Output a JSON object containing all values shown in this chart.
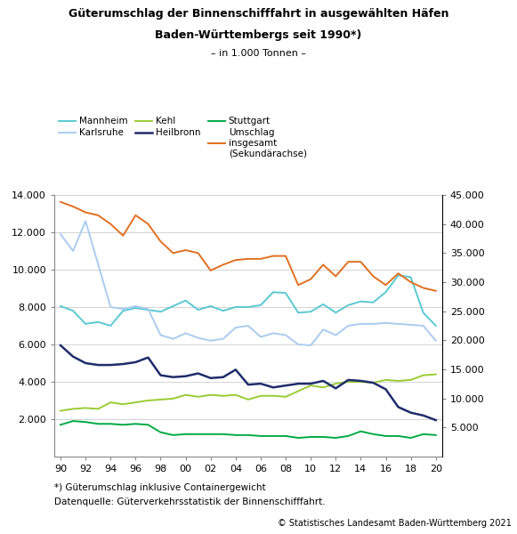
{
  "title_line1": "Güterumschlag der Binnenschifffahrt in ausgewählten Häfen",
  "title_line2": "Baden-Württembergs seit 1990*)",
  "subtitle": "– in 1.000 Tonnen –",
  "years": [
    1990,
    1991,
    1992,
    1993,
    1994,
    1995,
    1996,
    1997,
    1998,
    1999,
    2000,
    2001,
    2002,
    2003,
    2004,
    2005,
    2006,
    2007,
    2008,
    2009,
    2010,
    2011,
    2012,
    2013,
    2014,
    2015,
    2016,
    2017,
    2018,
    2019,
    2020
  ],
  "mannheim": [
    8050,
    7800,
    7100,
    7200,
    7000,
    7800,
    7950,
    7850,
    7750,
    8050,
    8350,
    7850,
    8050,
    7800,
    8000,
    8000,
    8100,
    8800,
    8750,
    7700,
    7750,
    8150,
    7700,
    8100,
    8300,
    8250,
    8800,
    9700,
    9600,
    7700,
    7000
  ],
  "karlsruhe": [
    11900,
    11000,
    12600,
    10300,
    8000,
    7900,
    8050,
    7900,
    6500,
    6300,
    6600,
    6350,
    6200,
    6300,
    6900,
    7000,
    6400,
    6600,
    6500,
    6000,
    5950,
    6800,
    6500,
    7000,
    7100,
    7100,
    7150,
    7100,
    7050,
    7000,
    6200
  ],
  "kehl": [
    2450,
    2550,
    2600,
    2550,
    2900,
    2800,
    2900,
    3000,
    3050,
    3100,
    3300,
    3200,
    3300,
    3250,
    3300,
    3050,
    3250,
    3250,
    3200,
    3500,
    3800,
    3700,
    3900,
    4000,
    4000,
    3950,
    4100,
    4050,
    4100,
    4350,
    4400
  ],
  "heilbronn": [
    5950,
    5350,
    5000,
    4900,
    4900,
    4950,
    5050,
    5300,
    4350,
    4250,
    4300,
    4450,
    4200,
    4250,
    4650,
    3850,
    3900,
    3700,
    3800,
    3900,
    3900,
    4050,
    3650,
    4100,
    4050,
    3950,
    3600,
    2650,
    2350,
    2200,
    1950
  ],
  "stuttgart": [
    1700,
    1900,
    1850,
    1750,
    1750,
    1700,
    1750,
    1700,
    1300,
    1150,
    1200,
    1200,
    1200,
    1200,
    1150,
    1150,
    1100,
    1100,
    1100,
    1000,
    1050,
    1050,
    1000,
    1100,
    1350,
    1200,
    1100,
    1100,
    1000,
    1200,
    1150
  ],
  "umschlag_insgesamt": [
    43800,
    43000,
    42000,
    41500,
    40000,
    38000,
    41500,
    40000,
    37000,
    35000,
    35500,
    35000,
    32000,
    33000,
    33800,
    34000,
    34000,
    34500,
    34500,
    29500,
    30500,
    33000,
    31000,
    33500,
    33500,
    31000,
    29500,
    31500,
    30000,
    29000,
    28500
  ],
  "mannheim_color": "#5BC8D2",
  "karlsruhe_color": "#AACCEE",
  "kehl_color": "#99CC33",
  "heilbronn_color": "#1F2D6B",
  "stuttgart_color": "#00AA44",
  "umschlag_color": "#E07020",
  "ylim_left": [
    0,
    14000
  ],
  "ylim_right": [
    0,
    45000
  ],
  "yticks_left": [
    2000,
    4000,
    6000,
    8000,
    10000,
    12000,
    14000
  ],
  "yticks_right": [
    5000,
    10000,
    15000,
    20000,
    25000,
    30000,
    35000,
    40000,
    45000
  ],
  "footnote1": "*) Güterumschlag inklusive Containergewicht",
  "footnote2": "Datenquelle: Güterverkehrsstatistik der Binnenschifffahrt.",
  "copyright": "© Statistisches Landesamt Baden-Württemberg 2021",
  "legend_labels": [
    "Mannheim",
    "Karlsruhe",
    "Kehl",
    "Heilbronn",
    "Stuttgart",
    "Umschlag\ninsgesamt\n(Sekundärachse)"
  ]
}
